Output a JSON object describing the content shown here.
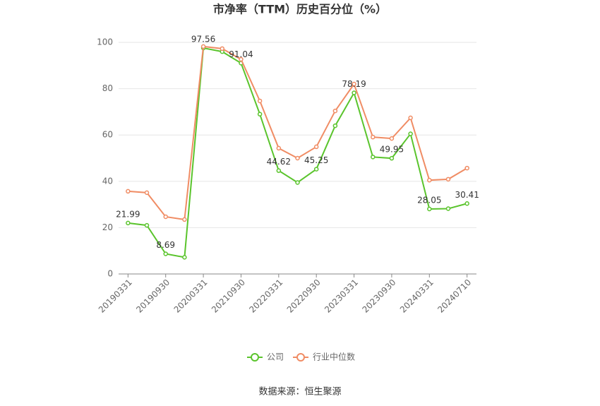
{
  "chart_data": {
    "type": "line",
    "title": "市净率（TTM）历史百分位（%）",
    "categories": [
      "20190331",
      null,
      "20190930",
      null,
      "20200331",
      null,
      "20210930",
      null,
      "20220331",
      null,
      "20220930",
      null,
      "20230331",
      null,
      "20230930",
      null,
      "20240331",
      null,
      "20240710"
    ],
    "series": [
      {
        "name": "公司",
        "color": "#5ac42c",
        "values": [
          21.99,
          21.0,
          8.69,
          7.2,
          97.56,
          96.0,
          91.04,
          69.0,
          44.62,
          39.5,
          45.25,
          64.0,
          78.19,
          50.5,
          49.95,
          60.5,
          28.05,
          28.2,
          30.41
        ]
      },
      {
        "name": "行业中位数",
        "color": "#f08c64",
        "values": [
          35.7,
          35.1,
          24.7,
          23.5,
          98.2,
          97.3,
          92.7,
          74.7,
          54.3,
          50.0,
          54.9,
          70.4,
          82.0,
          59.1,
          58.5,
          67.4,
          40.5,
          40.9,
          45.7
        ]
      }
    ],
    "ylim": [
      0,
      100
    ],
    "yticks": [
      0,
      20,
      40,
      60,
      80,
      100
    ],
    "grid": true,
    "source": "数据来源：恒生聚源"
  }
}
